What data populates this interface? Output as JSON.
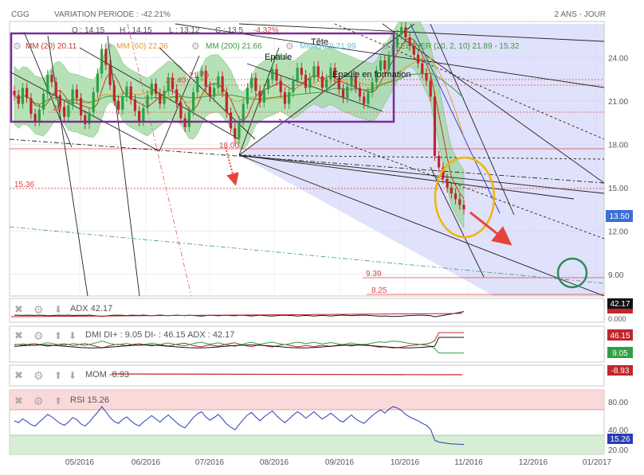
{
  "header": {
    "symbol": "CGG",
    "variation": "VARIATION PERIODE : -42.21%",
    "period": "2 ANS - JOUR"
  },
  "ohlc": {
    "o_label": "O : 14.15",
    "h_label": "H : 14.15",
    "l_label": "L : 13.12",
    "c_label": "C : 13.5",
    "chg_label": "-4.32%"
  },
  "legend": {
    "mm20": "MM (20)  20.11",
    "mm60": "MM (60)  22.36",
    "mm200": "MM (200)  21.66",
    "mm100": "MM (100)  21.99",
    "keltner": "KELTNER (20, 2, 10)  21.89 - 15.32"
  },
  "annotations": {
    "epaule": "Epaule",
    "tete": "Tête",
    "epaule_formation": "Epaule en formation",
    "lvl_2240": "22.40",
    "lvl_2170": "21.70",
    "lvl_20": "20.",
    "lvl_18": "18.00",
    "lvl_1536": "15.36",
    "lvl_939": "9.39",
    "lvl_825": "8.25"
  },
  "colors": {
    "mm20": "#c0392b",
    "mm60": "#e69a2e",
    "mm200": "#3c9a3c",
    "mm100": "#5bc0de",
    "keltner_fill": "#9ed79e",
    "bull": "#2ea043",
    "bear": "#c0262c",
    "last_price": "#3c6ed8",
    "pattern_box": "#7b2c96",
    "ellipse": "#f0b400",
    "circle": "#2e8b57"
  },
  "panels": {
    "adx": {
      "label": "ADX",
      "value": "42.17",
      "scale_top": "",
      "scale_bottom": "0.000"
    },
    "dmi": {
      "label": "DMI DI+ : 9.05 DI- : 46.15 ADX : 42.17",
      "v1": "46.15",
      "v2": "9.05"
    },
    "mom": {
      "label": "MOM",
      "value": "-8.93"
    },
    "rsi": {
      "label": "RSI",
      "value": "15.26",
      "t80": "80.00",
      "t40": "40.00",
      "t20": "20.00"
    }
  },
  "chart_data": {
    "type": "candlestick",
    "title": "CGG",
    "y_axis": {
      "ticks": [
        "24.00",
        "21.00",
        "18.00",
        "15.00",
        "12.00",
        "9.00"
      ],
      "ylim": [
        7.5,
        26.5
      ]
    },
    "x_axis": {
      "ticks": [
        "05/2016",
        "06/2016",
        "07/2016",
        "08/2016",
        "09/2016",
        "10/2016",
        "11/2016",
        "12/2016",
        "01/2017"
      ]
    },
    "last_price": "13.50",
    "closes": [
      21.4,
      20.8,
      21.9,
      21.2,
      20.1,
      19.6,
      20.4,
      21.5,
      22.8,
      22.3,
      21.4,
      20.6,
      19.9,
      20.7,
      21.8,
      21.2,
      20.0,
      19.4,
      20.2,
      21.6,
      22.9,
      24.6,
      23.5,
      22.1,
      21.0,
      20.4,
      21.3,
      22.0,
      21.1,
      20.3,
      19.6,
      20.5,
      21.4,
      22.2,
      21.5,
      20.8,
      21.7,
      22.6,
      21.8,
      20.9,
      19.8,
      19.2,
      20.3,
      21.6,
      22.7,
      23.1,
      22.0,
      21.3,
      21.9,
      22.7,
      21.6,
      20.2,
      19.1,
      18.4,
      19.6,
      20.8,
      21.9,
      22.6,
      21.7,
      20.9,
      21.8,
      22.5,
      23.2,
      22.4,
      21.6,
      20.8,
      21.6,
      22.4,
      23.3,
      22.8,
      21.9,
      22.6,
      23.4,
      22.7,
      21.9,
      22.5,
      23.3,
      22.6,
      21.8,
      21.2,
      22.0,
      22.7,
      21.9,
      21.3,
      20.8,
      21.6,
      22.3,
      23.1,
      23.8,
      23.2,
      24.1,
      24.9,
      25.6,
      26.1,
      25.4,
      24.8,
      24.2,
      23.6,
      22.9,
      22.4,
      21.3,
      17.2,
      16.4,
      15.6,
      15.0,
      14.6,
      14.2,
      13.8,
      13.5
    ],
    "rsi": [
      52,
      49,
      55,
      51,
      46,
      44,
      50,
      56,
      62,
      58,
      53,
      48,
      45,
      50,
      57,
      54,
      47,
      44,
      50,
      58,
      65,
      74,
      66,
      57,
      51,
      48,
      54,
      58,
      52,
      47,
      44,
      50,
      55,
      60,
      55,
      50,
      56,
      61,
      55,
      49,
      44,
      41,
      49,
      57,
      63,
      66,
      58,
      53,
      57,
      62,
      55,
      47,
      42,
      38,
      46,
      54,
      61,
      65,
      58,
      52,
      58,
      63,
      67,
      60,
      54,
      49,
      55,
      61,
      66,
      62,
      56,
      61,
      66,
      60,
      55,
      59,
      64,
      59,
      53,
      50,
      56,
      61,
      55,
      51,
      48,
      54,
      60,
      65,
      69,
      64,
      70,
      74,
      72,
      68,
      62,
      58,
      55,
      52,
      48,
      45,
      39,
      22,
      19,
      18,
      17,
      16,
      16,
      15.5,
      15.26
    ]
  }
}
